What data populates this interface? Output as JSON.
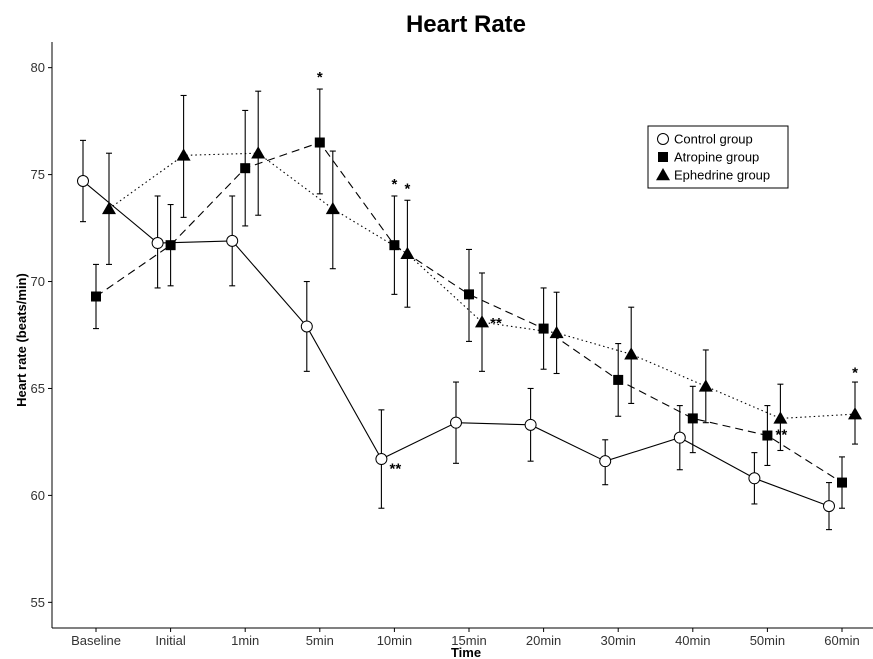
{
  "chart_data": {
    "type": "line",
    "title": "Heart Rate",
    "xlabel": "Time",
    "ylabel": "Heart rate (beats/min)",
    "categories": [
      "Baseline",
      "Initial",
      "1min",
      "5min",
      "10min",
      "15min",
      "20min",
      "30min",
      "40min",
      "50min",
      "60min"
    ],
    "ylim": [
      53.8,
      81.2
    ],
    "yticks": [
      55,
      60,
      65,
      70,
      75,
      80
    ],
    "grid": false,
    "legend_position": "top-right",
    "series": [
      {
        "name": "Control group",
        "marker": "circle",
        "line_style": "solid",
        "values": [
          74.7,
          71.8,
          71.9,
          67.9,
          61.7,
          63.4,
          63.3,
          61.6,
          62.7,
          60.8,
          59.5
        ],
        "error_low": [
          72.8,
          69.7,
          69.8,
          65.8,
          59.4,
          61.5,
          61.6,
          60.5,
          61.2,
          59.6,
          58.4
        ],
        "error_high": [
          76.6,
          74.0,
          74.0,
          70.0,
          64.0,
          65.3,
          65.0,
          62.6,
          64.2,
          62.0,
          60.6
        ]
      },
      {
        "name": "Atropine group",
        "marker": "square",
        "line_style": "dashed",
        "values": [
          69.3,
          71.7,
          75.3,
          76.5,
          71.7,
          69.4,
          67.8,
          65.4,
          63.6,
          62.8,
          60.6
        ],
        "error_low": [
          67.8,
          69.8,
          72.6,
          74.1,
          69.4,
          67.2,
          65.9,
          63.7,
          62.0,
          61.4,
          59.4
        ],
        "error_high": [
          70.8,
          73.6,
          78.0,
          79.0,
          74.0,
          71.5,
          69.7,
          67.1,
          65.1,
          64.2,
          61.8
        ]
      },
      {
        "name": "Ephedrine group",
        "marker": "triangle",
        "line_style": "dotted",
        "values": [
          73.4,
          75.9,
          76.0,
          73.4,
          71.3,
          68.1,
          67.6,
          66.6,
          65.1,
          63.6,
          63.8
        ],
        "error_low": [
          70.8,
          73.0,
          73.1,
          70.6,
          68.8,
          65.8,
          65.7,
          64.3,
          63.4,
          62.1,
          62.4
        ],
        "error_high": [
          76.0,
          78.7,
          78.9,
          76.1,
          73.8,
          70.4,
          69.5,
          68.8,
          66.8,
          65.2,
          65.3
        ]
      }
    ],
    "annotations": [
      {
        "text": "*",
        "category": "5min",
        "series": "Atropine group",
        "y": 79.6
      },
      {
        "text": "*",
        "category": "10min",
        "series": "Atropine group",
        "y": 74.6
      },
      {
        "text": "*",
        "category": "10min",
        "series": "Ephedrine group",
        "y": 74.4
      },
      {
        "text": "**",
        "category": "10min",
        "series": "Control group",
        "y": 61.3
      },
      {
        "text": "**",
        "category": "15min",
        "series": "Ephedrine group",
        "y": 68.1
      },
      {
        "text": "**",
        "category": "50min",
        "series": "Atropine group",
        "y": 62.9
      },
      {
        "text": "*",
        "category": "60min",
        "series": "Ephedrine group",
        "y": 65.8
      }
    ]
  }
}
